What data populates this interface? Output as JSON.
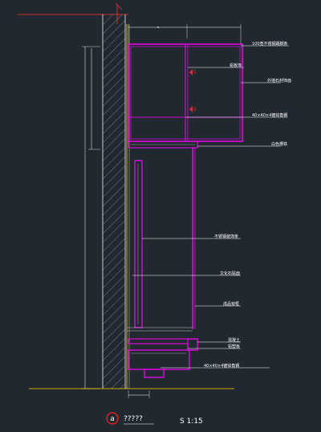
{
  "colors": {
    "background": "#212830",
    "frame": "#ff00ff",
    "wall": "#c8c8c8",
    "leader": "#ffffff",
    "finish_line": "#ffd700",
    "grid": "#ff3030",
    "marker": "#ff2020"
  },
  "annotations": [
    {
      "text": "100宽不锈钢踢脚条"
    },
    {
      "text": "铝板饰"
    },
    {
      "text": "外墙石材饰面"
    },
    {
      "text": "40×40×4镀锌角钢"
    },
    {
      "text": "白色槽铁"
    },
    {
      "text": "不锈钢装饰条"
    },
    {
      "text": "文化石贴面"
    },
    {
      "text": "成品窗框"
    },
    {
      "text": "混凝土"
    },
    {
      "text": "铝塑板"
    },
    {
      "text": "40×40×4镀锌角钢"
    }
  ],
  "title": {
    "marker_letter": "a",
    "name": "?????",
    "scale": "S 1:15"
  }
}
